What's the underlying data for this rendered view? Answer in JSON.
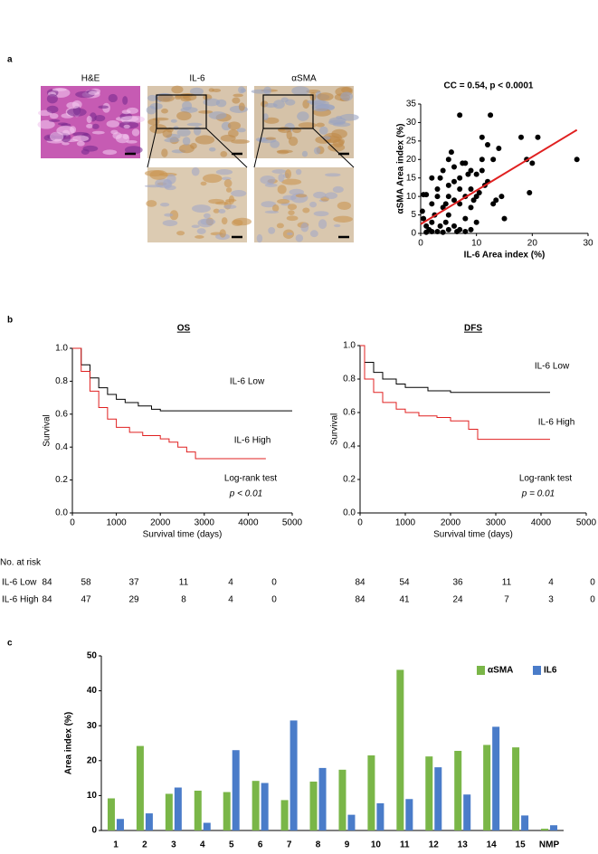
{
  "panel_labels": [
    "a",
    "b",
    "c"
  ],
  "image_labels": [
    "H&E",
    "IL-6",
    "αSMA"
  ],
  "risk_table": {
    "title": "No. at risk",
    "rows": [
      {
        "label": "IL-6 Low",
        "os": [
          84,
          58,
          37,
          11,
          4,
          0
        ],
        "dfs": [
          84,
          54,
          36,
          11,
          4,
          0
        ]
      },
      {
        "label": "IL-6 High",
        "os": [
          84,
          47,
          29,
          8,
          4,
          0
        ],
        "dfs": [
          84,
          41,
          24,
          7,
          3,
          0
        ]
      }
    ]
  },
  "chart_data": [
    {
      "type": "scatter",
      "title": "CC = 0.54, p < 0.0001",
      "x_label": "IL-6 Area index (%)",
      "y_label": "αSMA Area index (%)",
      "x": [
        0.5,
        1,
        0.3,
        0.5,
        1,
        1.5,
        2,
        2,
        2.5,
        2,
        3,
        3,
        3.5,
        4,
        4,
        4.5,
        5,
        5,
        5,
        5,
        5.5,
        6,
        6,
        6,
        6.5,
        7,
        7,
        7,
        7,
        7.5,
        8,
        8,
        8,
        8.5,
        9,
        9,
        9,
        9.5,
        10,
        10,
        10,
        10.5,
        11,
        11,
        11,
        11.5,
        12,
        12,
        12.5,
        13,
        13,
        13.5,
        14,
        14.5,
        15,
        7,
        3,
        4,
        8,
        9,
        18,
        19,
        19.5,
        20,
        21,
        28,
        5,
        6,
        2,
        3.5,
        4.5,
        1
      ],
      "values": [
        10.5,
        10.5,
        6,
        4,
        2,
        1,
        0.5,
        3,
        5,
        8,
        10,
        12,
        15,
        17,
        7,
        3,
        1,
        5,
        10,
        20,
        22,
        14,
        18,
        2,
        0.5,
        1,
        8,
        12,
        15,
        19,
        4,
        10,
        19,
        16,
        7,
        12,
        17,
        9,
        10,
        16,
        3,
        11,
        17,
        20,
        26,
        13,
        14,
        24,
        32,
        20,
        8,
        9,
        23,
        10,
        4,
        32,
        0.5,
        0.3,
        0.5,
        1,
        26,
        20,
        11,
        19,
        26,
        20,
        13,
        9,
        15,
        2,
        8,
        0.3
      ],
      "color": "#000000",
      "fit_line": {
        "x": [
          0,
          28
        ],
        "values": [
          2.5,
          28
        ],
        "color": "#e02020"
      },
      "xlim": [
        0,
        30
      ],
      "xticks": [
        0,
        10,
        20,
        30
      ],
      "ylim": [
        0,
        35
      ],
      "yticks": [
        0,
        5,
        10,
        15,
        20,
        25,
        30,
        35
      ]
    },
    {
      "type": "line",
      "step": true,
      "title": "OS",
      "x_label": "Survival time (days)",
      "y_label": "Survival",
      "series": [
        {
          "name": "IL-6 Low",
          "color": "#000000",
          "x": [
            0,
            200,
            400,
            600,
            800,
            1000,
            1200,
            1500,
            1800,
            2000,
            5000
          ],
          "values": [
            1,
            0.9,
            0.82,
            0.76,
            0.72,
            0.69,
            0.67,
            0.65,
            0.63,
            0.62,
            0.62
          ]
        },
        {
          "name": "IL-6 High",
          "color": "#e02020",
          "x": [
            0,
            200,
            400,
            600,
            800,
            1000,
            1300,
            1600,
            2000,
            2200,
            2400,
            2600,
            2800,
            3500,
            4400
          ],
          "values": [
            1,
            0.86,
            0.74,
            0.64,
            0.57,
            0.52,
            0.49,
            0.47,
            0.45,
            0.43,
            0.4,
            0.37,
            0.33,
            0.33,
            0.33
          ]
        }
      ],
      "annotations": [
        "Log-rank test",
        "p < 0.01"
      ],
      "xlim": [
        0,
        5000
      ],
      "xticks": [
        0,
        1000,
        2000,
        3000,
        4000,
        5000
      ],
      "ylim": [
        0,
        1
      ],
      "yticks": [
        {
          "value": 0,
          "label": "0.0"
        },
        0.2,
        0.4,
        0.6,
        0.8,
        {
          "value": 1,
          "label": "1.0"
        }
      ]
    },
    {
      "type": "line",
      "step": true,
      "title": "DFS",
      "x_label": "Survival time (days)",
      "y_label": "Survival",
      "series": [
        {
          "name": "IL-6 Low",
          "color": "#000000",
          "x": [
            0,
            100,
            300,
            500,
            800,
            1000,
            1500,
            2000,
            4200
          ],
          "values": [
            1,
            0.9,
            0.84,
            0.8,
            0.77,
            0.75,
            0.73,
            0.72,
            0.72
          ]
        },
        {
          "name": "IL-6 High",
          "color": "#e02020",
          "x": [
            0,
            100,
            300,
            500,
            800,
            1000,
            1300,
            1700,
            2000,
            2400,
            2600,
            4200
          ],
          "values": [
            1,
            0.8,
            0.72,
            0.66,
            0.62,
            0.6,
            0.58,
            0.57,
            0.55,
            0.5,
            0.44,
            0.44
          ]
        }
      ],
      "annotations": [
        "Log-rank test",
        "p = 0.01"
      ],
      "xlim": [
        0,
        5000
      ],
      "xticks": [
        0,
        1000,
        2000,
        3000,
        4000,
        5000
      ],
      "ylim": [
        0,
        1
      ],
      "yticks": [
        {
          "value": 0,
          "label": "0.0"
        },
        0.2,
        0.4,
        0.6,
        0.8,
        {
          "value": 1,
          "label": "1.0"
        }
      ]
    },
    {
      "type": "bar",
      "y_label": "Area index (%)",
      "categories": [
        "1",
        "2",
        "3",
        "4",
        "5",
        "6",
        "7",
        "8",
        "9",
        "10",
        "11",
        "12",
        "13",
        "14",
        "15",
        "NMP"
      ],
      "series": [
        {
          "name": "αSMA",
          "color": "#7ab648",
          "values": [
            9.2,
            24.2,
            10.5,
            11.4,
            11,
            14.2,
            8.7,
            14,
            17.4,
            21.5,
            46,
            21.2,
            22.8,
            24.5,
            23.8,
            0.5
          ]
        },
        {
          "name": "IL6",
          "color": "#4a7cc9",
          "values": [
            3.3,
            4.9,
            12.3,
            2.2,
            23,
            13.6,
            31.5,
            17.9,
            4.5,
            7.8,
            9,
            18.1,
            10.3,
            29.7,
            4.3,
            1.5
          ]
        }
      ],
      "legend": "top-right",
      "ylim": [
        0,
        50
      ],
      "yticks": [
        0,
        10,
        20,
        30,
        40,
        50
      ]
    }
  ]
}
